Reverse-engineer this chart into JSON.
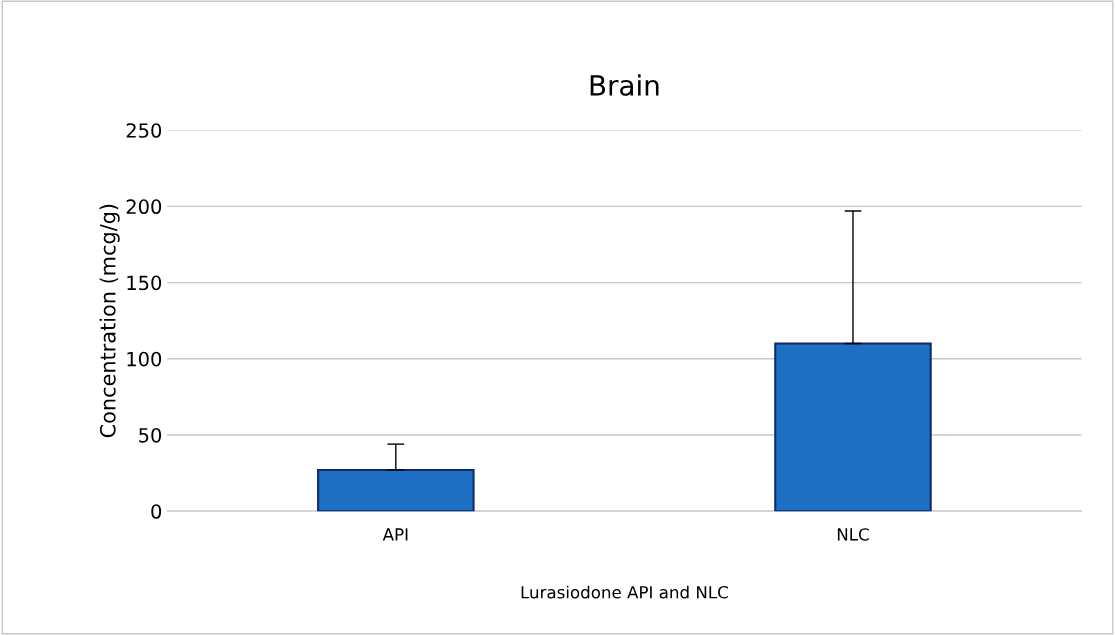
{
  "chart_data": {
    "type": "bar",
    "title": "Brain",
    "xlabel": "Lurasiodone API and NLC",
    "ylabel": "Concentration (mcg/g)",
    "categories": [
      "API",
      "NLC"
    ],
    "series": [
      {
        "color": "#1f6fc4",
        "values": [
          27,
          110
        ],
        "errors": [
          [
            27,
            44
          ],
          [
            110,
            197
          ]
        ]
      }
    ],
    "ylim": [
      0,
      250
    ],
    "yticks": [
      0,
      50,
      100,
      150,
      200,
      250
    ],
    "grid": "y",
    "legend": false
  }
}
